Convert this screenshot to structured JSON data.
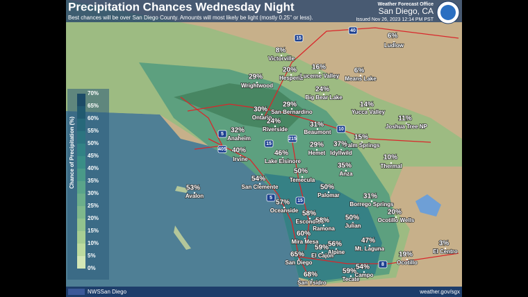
{
  "header": {
    "title": "Precipitation Chances Wednesday Night",
    "subtitle": "Best chances will be over San Diego County. Amounts will most likely be light (mostly 0.25\" or less).",
    "office": "Weather Forecast Office",
    "location": "San Diego, CA",
    "issued": "Issued Nov 26, 2023 12:14 PM PST"
  },
  "legend": {
    "title": "Chance of Precipitation (%)",
    "ticks": [
      "70%",
      "65%",
      "60%",
      "55%",
      "50%",
      "45%",
      "40%",
      "35%",
      "30%",
      "25%",
      "20%",
      "15%",
      "10%",
      "5%",
      "0%"
    ]
  },
  "places": [
    {
      "name": "Victorville",
      "chance": "8%"
    },
    {
      "name": "Hesperia",
      "chance": "20%"
    },
    {
      "name": "Lucerne Valley",
      "chance": "16%"
    },
    {
      "name": "Ludlow",
      "chance": "6%"
    },
    {
      "name": "Means Lake",
      "chance": "6%"
    },
    {
      "name": "Wrightwood",
      "chance": "29%"
    },
    {
      "name": "Big Bear Lake",
      "chance": "24%"
    },
    {
      "name": "San Bernardino",
      "chance": "29%"
    },
    {
      "name": "Ontario",
      "chance": "30%"
    },
    {
      "name": "Riverside",
      "chance": "24%"
    },
    {
      "name": "Yucca Valley",
      "chance": "14%"
    },
    {
      "name": "Joshua Tree NP",
      "chance": "11%"
    },
    {
      "name": "Anaheim",
      "chance": "32%"
    },
    {
      "name": "Beaumont",
      "chance": "31%"
    },
    {
      "name": "Palm Springs",
      "chance": "15%"
    },
    {
      "name": "Irvine",
      "chance": "40%"
    },
    {
      "name": "Hemet",
      "chance": "29%"
    },
    {
      "name": "Idyllwild",
      "chance": "37%"
    },
    {
      "name": "Lake Elsinore",
      "chance": "46%"
    },
    {
      "name": "Thermal",
      "chance": "10%"
    },
    {
      "name": "Anza",
      "chance": "35%"
    },
    {
      "name": "Temecula",
      "chance": "50%"
    },
    {
      "name": "San Clemente",
      "chance": "54%"
    },
    {
      "name": "Avalon",
      "chance": "53%"
    },
    {
      "name": "Palomar",
      "chance": "50%"
    },
    {
      "name": "Borrego Springs",
      "chance": "31%"
    },
    {
      "name": "Oceanside",
      "chance": "57%"
    },
    {
      "name": "Ocotillo Wells",
      "chance": "20%"
    },
    {
      "name": "Escondido",
      "chance": "58%"
    },
    {
      "name": "Ramona",
      "chance": "58%"
    },
    {
      "name": "Julian",
      "chance": "50%"
    },
    {
      "name": "Mira Mesa",
      "chance": "60%"
    },
    {
      "name": "Mt. Laguna",
      "chance": "47%"
    },
    {
      "name": "El Centro",
      "chance": "3%"
    },
    {
      "name": "Alpine",
      "chance": "56%"
    },
    {
      "name": "El Cajon",
      "chance": "59%"
    },
    {
      "name": "San Diego",
      "chance": "65%"
    },
    {
      "name": "Ocotillo",
      "chance": "19%"
    },
    {
      "name": "Campo",
      "chance": "54%"
    },
    {
      "name": "Tecate",
      "chance": "59%"
    },
    {
      "name": "San Ysidro",
      "chance": "68%"
    }
  ],
  "shields": [
    "15",
    "40",
    "10",
    "5",
    "215",
    "405",
    "15",
    "5",
    "15",
    "8"
  ],
  "footer": {
    "social": "NWSSan Diego",
    "url": "weather.gov/sgx"
  }
}
